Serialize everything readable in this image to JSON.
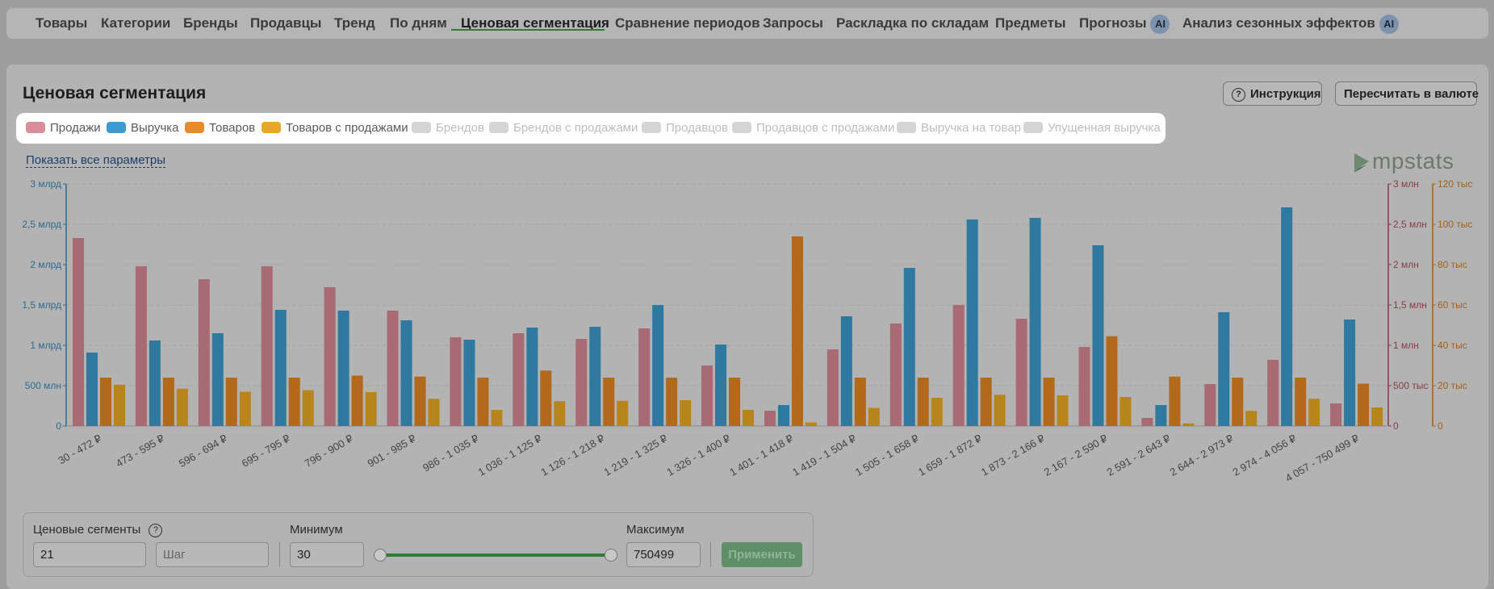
{
  "tabs": [
    {
      "label": "Товары",
      "ai": false,
      "active": false
    },
    {
      "label": "Категории",
      "ai": false,
      "active": false
    },
    {
      "label": "Бренды",
      "ai": false,
      "active": false
    },
    {
      "label": "Продавцы",
      "ai": false,
      "active": false
    },
    {
      "label": "Тренд",
      "ai": false,
      "active": false
    },
    {
      "label": "По дням",
      "ai": false,
      "active": false
    },
    {
      "label": "Ценовая сегментация",
      "ai": false,
      "active": true
    },
    {
      "label": "Сравнение периодов",
      "ai": false,
      "active": false
    },
    {
      "label": "Запросы",
      "ai": false,
      "active": false
    },
    {
      "label": "Раскладка по складам",
      "ai": false,
      "active": false
    },
    {
      "label": "Предметы",
      "ai": false,
      "active": false
    },
    {
      "label": "Прогнозы",
      "ai": true,
      "active": false
    },
    {
      "label": "Анализ сезонных эффектов",
      "ai": true,
      "active": false
    }
  ],
  "ai_badge": "AI",
  "page": {
    "title": "Ценовая сегментация",
    "instruction_button": "Инструкция",
    "instruction_icon": "?",
    "currency_button": "Пересчитать в валюте",
    "show_params_link": "Показать все параметры",
    "logo_text": "mpstats"
  },
  "legend": [
    {
      "label": "Продажи",
      "color": "#d98d98",
      "enabled": true
    },
    {
      "label": "Выручка",
      "color": "#3d9bd1",
      "enabled": true
    },
    {
      "label": "Товаров",
      "color": "#e88a2a",
      "enabled": true
    },
    {
      "label": "Товаров с продажами",
      "color": "#e9a628",
      "enabled": true
    },
    {
      "label": "Брендов",
      "color": "#d4d4d4",
      "enabled": false
    },
    {
      "label": "Брендов с продажами",
      "color": "#d4d4d4",
      "enabled": false
    },
    {
      "label": "Продавцов",
      "color": "#d4d4d4",
      "enabled": false
    },
    {
      "label": "Продавцов с продажами",
      "color": "#d4d4d4",
      "enabled": false
    },
    {
      "label": "Выручка на товар",
      "color": "#d4d4d4",
      "enabled": false
    },
    {
      "label": "Упущенная выручка",
      "color": "#d4d4d4",
      "enabled": false
    }
  ],
  "chart_data": {
    "type": "bar",
    "categories": [
      "30 - 472 ₽",
      "473 - 595 ₽",
      "596 - 694 ₽",
      "695 - 795 ₽",
      "796 - 900 ₽",
      "901 - 985 ₽",
      "986 - 1 035 ₽",
      "1 036 - 1 125 ₽",
      "1 126 - 1 218 ₽",
      "1 219 - 1 325 ₽",
      "1 326 - 1 400 ₽",
      "1 401 - 1 418 ₽",
      "1 419 - 1 504 ₽",
      "1 505 - 1 658 ₽",
      "1 659 - 1 872 ₽",
      "1 873 - 2 166 ₽",
      "2 167 - 2 590 ₽",
      "2 591 - 2 643 ₽",
      "2 644 - 2 973 ₽",
      "2 974 - 4 056 ₽",
      "4 057 - 750 499 ₽"
    ],
    "series": [
      {
        "name": "Продажи",
        "axis": "right1",
        "color": "#a86a73",
        "values": [
          2330000,
          1980000,
          1820000,
          1980000,
          1720000,
          1430000,
          1100000,
          1150000,
          1080000,
          1210000,
          750000,
          190000,
          950000,
          1270000,
          1500000,
          1330000,
          980000,
          100000,
          520000,
          820000,
          280000
        ]
      },
      {
        "name": "Выручка",
        "axis": "left",
        "color": "#2f789f",
        "values": [
          910000000,
          1060000000,
          1150000000,
          1440000000,
          1430000000,
          1310000000,
          1070000000,
          1220000000,
          1230000000,
          1500000000,
          1010000000,
          260000000,
          1360000000,
          1960000000,
          2560000000,
          2580000000,
          2240000000,
          260000000,
          1410000000,
          2710000000,
          1320000000
        ]
      },
      {
        "name": "Товаров",
        "axis": "right2",
        "color": "#b2691c",
        "values": [
          24000,
          24000,
          24000,
          24000,
          25000,
          24500,
          24000,
          27500,
          24000,
          24000,
          24000,
          94000,
          24000,
          24000,
          24000,
          24000,
          44500,
          24500,
          24000,
          24000,
          21000
        ]
      },
      {
        "name": "Товаров с продажами",
        "axis": "right2",
        "color": "#b8851c",
        "values": [
          20500,
          18500,
          17000,
          17800,
          16800,
          13500,
          8000,
          12300,
          12500,
          12800,
          8000,
          1800,
          9000,
          14000,
          15500,
          15200,
          14400,
          1300,
          7500,
          13500,
          9200
        ]
      }
    ],
    "y_left": {
      "ticks": [
        "0",
        "500 млн",
        "1 млрд",
        "1,5 млрд",
        "2 млрд",
        "2,5 млрд",
        "3 млрд"
      ],
      "max": 3000000000
    },
    "y_right1": {
      "ticks": [
        "0",
        "500 тыс",
        "1 млн",
        "1,5 млн",
        "2 млн",
        "2,5 млн",
        "3 млн"
      ],
      "max": 3000000
    },
    "y_right2": {
      "ticks": [
        "0",
        "20 тыс",
        "40 тыс",
        "60 тыс",
        "80 тыс",
        "100 тыс",
        "120 тыс"
      ],
      "max": 120000
    },
    "grid": true
  },
  "segments": {
    "label": "Ценовые сегменты",
    "help_icon": "?",
    "count_value": "21",
    "step_placeholder": "Шаг",
    "min_label": "Минимум",
    "min_value": "30",
    "max_label": "Максимум",
    "max_value": "750499",
    "apply_button": "Применить"
  }
}
